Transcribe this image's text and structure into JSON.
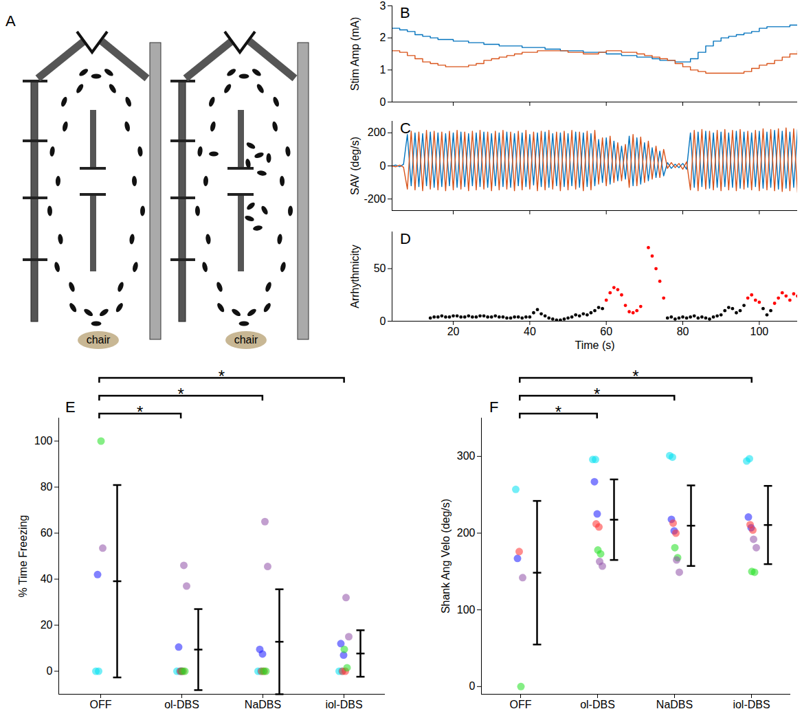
{
  "chart_data": [
    {
      "type": "diagram",
      "panel": "A",
      "labels": [
        "chair",
        "chair"
      ]
    },
    {
      "type": "line",
      "panel": "B",
      "y_label": "Stim Amp (mA)",
      "line_style": "step",
      "tick_labels": "y",
      "x": [
        4,
        6,
        8,
        10,
        12,
        14,
        16,
        18,
        20,
        22,
        24,
        26,
        28,
        30,
        32,
        34,
        36,
        38,
        40,
        42,
        44,
        46,
        48,
        50,
        52,
        54,
        56,
        58,
        60,
        62,
        64,
        66,
        68,
        70,
        72,
        74,
        76,
        78,
        80,
        82,
        84,
        86,
        88,
        90,
        92,
        94,
        96,
        98,
        100,
        102,
        104,
        106,
        108,
        110
      ],
      "series": [
        {
          "color": "#0072bd",
          "values": [
            2.3,
            2.25,
            2.2,
            2.1,
            2.05,
            2.0,
            1.95,
            1.95,
            1.9,
            1.9,
            1.85,
            1.85,
            1.8,
            1.8,
            1.75,
            1.75,
            1.75,
            1.7,
            1.7,
            1.7,
            1.65,
            1.65,
            1.6,
            1.6,
            1.6,
            1.55,
            1.55,
            1.55,
            1.5,
            1.5,
            1.45,
            1.45,
            1.4,
            1.4,
            1.35,
            1.3,
            1.3,
            1.25,
            1.25,
            1.35,
            1.55,
            1.75,
            1.9,
            2.0,
            2.05,
            2.1,
            2.15,
            2.2,
            2.3,
            2.35,
            2.35,
            2.35,
            2.4,
            2.4
          ]
        },
        {
          "color": "#d95319",
          "values": [
            1.6,
            1.55,
            1.45,
            1.35,
            1.25,
            1.2,
            1.15,
            1.1,
            1.1,
            1.1,
            1.15,
            1.2,
            1.3,
            1.35,
            1.4,
            1.45,
            1.5,
            1.55,
            1.55,
            1.6,
            1.6,
            1.6,
            1.6,
            1.55,
            1.55,
            1.5,
            1.5,
            1.55,
            1.6,
            1.6,
            1.55,
            1.55,
            1.5,
            1.45,
            1.4,
            1.35,
            1.3,
            1.2,
            1.1,
            1.0,
            0.95,
            0.9,
            0.9,
            0.9,
            0.9,
            0.9,
            0.95,
            1.05,
            1.15,
            1.2,
            1.3,
            1.4,
            1.5,
            1.6
          ]
        }
      ],
      "xlim": [
        4,
        110
      ],
      "xticks": [
        20,
        40,
        60,
        80,
        100
      ],
      "ylim": [
        0,
        3
      ],
      "yticks": [
        0,
        1,
        2,
        3
      ]
    },
    {
      "type": "line",
      "panel": "C",
      "y_label": "SAV (deg/s)",
      "tick_labels": "y",
      "x": [
        4,
        5,
        6,
        7,
        8,
        9,
        10,
        11,
        12,
        13,
        14,
        15,
        16,
        17,
        18,
        19,
        20,
        21,
        22,
        23,
        24,
        25,
        26,
        27,
        28,
        29,
        30,
        31,
        32,
        33,
        34,
        35,
        36,
        37,
        38,
        39,
        40,
        41,
        42,
        43,
        44,
        45,
        46,
        47,
        48,
        49,
        50,
        51,
        52,
        53,
        54,
        55,
        56,
        57,
        58,
        59,
        60,
        61,
        62,
        63,
        64,
        65,
        66,
        67,
        68,
        69,
        70,
        71,
        72,
        73,
        74,
        75,
        76,
        77,
        78,
        79,
        80,
        81,
        82,
        83,
        84,
        85,
        86,
        87,
        88,
        89,
        90,
        91,
        92,
        93,
        94,
        95,
        96,
        97,
        98,
        99,
        100,
        101,
        102,
        103,
        104,
        105,
        106,
        107,
        108,
        109,
        110
      ],
      "series": [
        {
          "color": "#0072bd",
          "values": [
            0,
            5,
            -5,
            10,
            190,
            -120,
            200,
            -125,
            195,
            -120,
            205,
            -130,
            200,
            -125,
            195,
            -120,
            200,
            -130,
            205,
            -125,
            195,
            -120,
            200,
            -125,
            205,
            -130,
            195,
            -120,
            200,
            -125,
            205,
            -130,
            195,
            -120,
            200,
            -125,
            190,
            -115,
            200,
            -125,
            205,
            -130,
            195,
            -120,
            200,
            -125,
            195,
            -120,
            205,
            -130,
            200,
            -125,
            195,
            -120,
            160,
            -100,
            170,
            -110,
            150,
            -90,
            120,
            -80,
            180,
            -120,
            170,
            -110,
            140,
            -90,
            110,
            -70,
            90,
            -60,
            20,
            -15,
            10,
            -10,
            15,
            -20,
            200,
            -130,
            205,
            -125,
            210,
            -135,
            200,
            -130,
            205,
            -125,
            200,
            -130,
            210,
            -135,
            205,
            -130,
            200,
            -125,
            210,
            -135,
            205,
            -130,
            215,
            -140,
            210,
            -135,
            205,
            -130,
            220
          ]
        },
        {
          "color": "#d95319",
          "values": [
            0,
            -5,
            5,
            -8,
            -140,
            210,
            -145,
            205,
            -150,
            215,
            -140,
            210,
            -145,
            205,
            -150,
            210,
            -145,
            215,
            -140,
            205,
            -150,
            210,
            -145,
            215,
            -140,
            205,
            -150,
            210,
            -145,
            215,
            -140,
            205,
            -150,
            210,
            -145,
            215,
            -140,
            205,
            -150,
            210,
            -145,
            215,
            -140,
            205,
            -150,
            210,
            -145,
            215,
            -140,
            205,
            -150,
            210,
            -145,
            215,
            -110,
            170,
            -120,
            180,
            -100,
            140,
            -90,
            130,
            -130,
            190,
            -120,
            175,
            -100,
            150,
            -80,
            120,
            -70,
            100,
            -15,
            20,
            -10,
            15,
            -20,
            25,
            -145,
            215,
            -150,
            220,
            -140,
            210,
            -145,
            215,
            -150,
            220,
            -145,
            215,
            -150,
            220,
            -140,
            210,
            -145,
            215,
            -150,
            225,
            -145,
            220,
            -150,
            225,
            -155,
            230,
            -150,
            225,
            -160
          ]
        }
      ],
      "xlim": [
        4,
        110
      ],
      "xticks": [
        20,
        40,
        60,
        80,
        100
      ],
      "ylim": [
        -270,
        270
      ],
      "yticks": [
        -200,
        0,
        200
      ]
    },
    {
      "type": "scatter",
      "panel": "D",
      "x_label": "Time (s)",
      "y_label": "Arrhythmicity",
      "marker": "circle",
      "series": [
        {
          "color": "#000000",
          "x": [
            14,
            15,
            16,
            17,
            18,
            19,
            20,
            21,
            22,
            23,
            24,
            25,
            26,
            27,
            28,
            29,
            30,
            31,
            32,
            33,
            34,
            35,
            36,
            37,
            38,
            39,
            40,
            41,
            42,
            43,
            44,
            45,
            46,
            47,
            48,
            49,
            50,
            51,
            52,
            53,
            54,
            55,
            56,
            57,
            58,
            59,
            76,
            77,
            78,
            79,
            80,
            81,
            82,
            83,
            84,
            85,
            86,
            87,
            88,
            89,
            90,
            91,
            92,
            93,
            94,
            95,
            96,
            101,
            102,
            103
          ],
          "values": [
            3,
            4,
            4,
            5,
            4,
            4,
            5,
            5,
            4,
            4,
            5,
            4,
            4,
            5,
            5,
            4,
            4,
            5,
            4,
            4,
            3,
            3,
            4,
            4,
            3,
            4,
            4,
            8,
            11,
            7,
            5,
            3,
            2,
            1,
            1,
            2,
            3,
            4,
            6,
            5,
            7,
            6,
            8,
            10,
            13,
            12,
            3,
            4,
            2,
            3,
            4,
            3,
            4,
            5,
            3,
            4,
            3,
            2,
            4,
            5,
            6,
            10,
            13,
            12,
            8,
            10,
            15,
            12,
            6,
            10
          ]
        },
        {
          "color": "#ff0000",
          "x": [
            60,
            61,
            62,
            63,
            64,
            65,
            66,
            67,
            68,
            69,
            71,
            72,
            73,
            74,
            75,
            97,
            98,
            99,
            100,
            104,
            105,
            106,
            107,
            108,
            109,
            110
          ],
          "values": [
            20,
            27,
            32,
            30,
            25,
            15,
            9,
            8,
            10,
            14,
            70,
            62,
            50,
            38,
            22,
            22,
            25,
            20,
            18,
            17,
            22,
            27,
            24,
            20,
            26,
            24
          ]
        }
      ],
      "xlim": [
        4,
        110
      ],
      "xticks": [
        20,
        40,
        60,
        80,
        100
      ],
      "ylim": [
        0,
        85
      ],
      "yticks": [
        0,
        50
      ]
    },
    {
      "type": "scatter",
      "panel": "E",
      "y_label": "% Time Freezing",
      "marker": "circle",
      "categories": [
        "OFF",
        "ol-DBS",
        "NaDBS",
        "iol-DBS"
      ],
      "series": [
        {
          "color": "#00e0f0",
          "values": [
            [
              0,
              0
            ],
            [
              0,
              0
            ],
            [
              0,
              0
            ],
            [
              0,
              0
            ]
          ]
        },
        {
          "color": "#1a1aff",
          "values": [
            [
              42
            ],
            [
              10.5,
              0
            ],
            [
              9.5,
              7.5
            ],
            [
              12,
              7
            ]
          ]
        },
        {
          "color": "#ff3030",
          "values": [
            [],
            [
              0,
              0
            ],
            [
              0,
              0
            ],
            [
              0,
              0
            ]
          ]
        },
        {
          "color": "#20e020",
          "values": [
            [
              100
            ],
            [
              0,
              0
            ],
            [
              0,
              0
            ],
            [
              9.5,
              1.5
            ]
          ]
        },
        {
          "color": "#9050a8",
          "values": [
            [
              53.5
            ],
            [
              46,
              37
            ],
            [
              65,
              45.5
            ],
            [
              32,
              15
            ]
          ]
        }
      ],
      "mean": [
        39.1,
        9.4,
        12.8,
        7.7
      ],
      "error": [
        41.8,
        17.6,
        22.8,
        10.1
      ],
      "annotations": [
        {
          "from": "OFF",
          "to": "ol-DBS",
          "label": "*"
        },
        {
          "from": "OFF",
          "to": "NaDBS",
          "label": "*"
        },
        {
          "from": "OFF",
          "to": "iol-DBS",
          "label": "*"
        }
      ],
      "ylim": [
        -10,
        110
      ],
      "yticks": [
        0,
        20,
        40,
        60,
        80,
        100
      ]
    },
    {
      "type": "scatter",
      "panel": "F",
      "y_label": "Shank Ang Velo (deg/s)",
      "marker": "circle",
      "categories": [
        "OFF",
        "ol-DBS",
        "NaDBS",
        "iol-DBS"
      ],
      "series": [
        {
          "color": "#00e0f0",
          "values": [
            [
              257
            ],
            [
              296,
              296
            ],
            [
              301,
              299
            ],
            [
              294,
              297
            ]
          ]
        },
        {
          "color": "#1a1aff",
          "values": [
            [
              167
            ],
            [
              267,
              225
            ],
            [
              218,
              203
            ],
            [
              221,
              207
            ]
          ]
        },
        {
          "color": "#ff3030",
          "values": [
            [
              176
            ],
            [
              212,
              208
            ],
            [
              213,
              200
            ],
            [
              211,
              204
            ]
          ]
        },
        {
          "color": "#20e020",
          "values": [
            [
              0
            ],
            [
              178,
              173
            ],
            [
              181,
              168
            ],
            [
              150,
              149
            ]
          ]
        },
        {
          "color": "#9050a8",
          "values": [
            [
              142
            ],
            [
              163,
              157
            ],
            [
              165,
              149
            ],
            [
              192,
              181
            ]
          ]
        }
      ],
      "mean": [
        148.4,
        217.5,
        209.7,
        210.6
      ],
      "error": [
        93.6,
        52.5,
        52.5,
        51
      ],
      "annotations": [
        {
          "from": "OFF",
          "to": "ol-DBS",
          "label": "*"
        },
        {
          "from": "OFF",
          "to": "NaDBS",
          "label": "*"
        },
        {
          "from": "OFF",
          "to": "iol-DBS",
          "label": "*"
        }
      ],
      "ylim": [
        -10,
        350
      ],
      "yticks": [
        0,
        100,
        200,
        300
      ]
    }
  ]
}
